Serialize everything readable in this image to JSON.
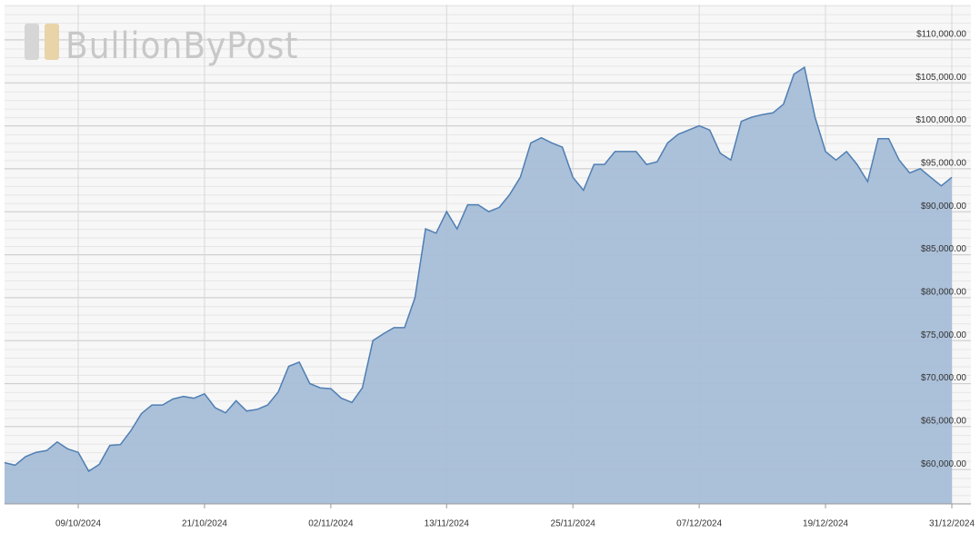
{
  "chart_data": {
    "type": "area",
    "watermark": "BullionByPost",
    "x": [
      "02/10/2024",
      "03/10/2024",
      "04/10/2024",
      "05/10/2024",
      "06/10/2024",
      "07/10/2024",
      "08/10/2024",
      "09/10/2024",
      "10/10/2024",
      "11/10/2024",
      "12/10/2024",
      "13/10/2024",
      "14/10/2024",
      "15/10/2024",
      "16/10/2024",
      "17/10/2024",
      "18/10/2024",
      "19/10/2024",
      "20/10/2024",
      "21/10/2024",
      "22/10/2024",
      "23/10/2024",
      "24/10/2024",
      "25/10/2024",
      "26/10/2024",
      "27/10/2024",
      "28/10/2024",
      "29/10/2024",
      "30/10/2024",
      "31/10/2024",
      "01/11/2024",
      "02/11/2024",
      "03/11/2024",
      "04/11/2024",
      "05/11/2024",
      "06/11/2024",
      "07/11/2024",
      "08/11/2024",
      "09/11/2024",
      "10/11/2024",
      "11/11/2024",
      "12/11/2024",
      "13/11/2024",
      "14/11/2024",
      "15/11/2024",
      "16/11/2024",
      "17/11/2024",
      "18/11/2024",
      "19/11/2024",
      "20/11/2024",
      "21/11/2024",
      "22/11/2024",
      "23/11/2024",
      "24/11/2024",
      "25/11/2024",
      "26/11/2024",
      "27/11/2024",
      "28/11/2024",
      "29/11/2024",
      "30/11/2024",
      "01/12/2024",
      "02/12/2024",
      "03/12/2024",
      "04/12/2024",
      "05/12/2024",
      "06/12/2024",
      "07/12/2024",
      "08/12/2024",
      "09/12/2024",
      "10/12/2024",
      "11/12/2024",
      "12/12/2024",
      "13/12/2024",
      "14/12/2024",
      "15/12/2024",
      "16/12/2024",
      "17/12/2024",
      "18/12/2024",
      "19/12/2024",
      "20/12/2024",
      "21/12/2024",
      "22/12/2024",
      "23/12/2024",
      "24/12/2024",
      "25/12/2024",
      "26/12/2024",
      "27/12/2024",
      "28/12/2024",
      "29/12/2024",
      "30/12/2024",
      "31/12/2024"
    ],
    "values": [
      60800,
      60500,
      61500,
      62000,
      62200,
      63200,
      62400,
      62000,
      59800,
      60600,
      62800,
      62900,
      64500,
      66500,
      67500,
      67500,
      68200,
      68500,
      68300,
      68800,
      67200,
      66600,
      68000,
      66800,
      67000,
      67500,
      69000,
      72000,
      72500,
      70000,
      69500,
      69400,
      68300,
      67800,
      69500,
      75000,
      75800,
      76500,
      76500,
      80000,
      88000,
      87500,
      90000,
      88000,
      90800,
      90800,
      90000,
      90500,
      92000,
      94000,
      98000,
      98600,
      98000,
      97500,
      94000,
      92500,
      95500,
      95500,
      97000,
      97000,
      97000,
      95500,
      95800,
      98000,
      99000,
      99500,
      100000,
      99500,
      96800,
      96000,
      100500,
      101000,
      101300,
      101500,
      102500,
      106000,
      106800,
      101000,
      97000,
      96000,
      97000,
      95500,
      93500,
      98500,
      98500,
      96000,
      94500,
      95000,
      94000,
      93000,
      94000
    ],
    "color": "#4f7fb3",
    "fill": "#a6bdd7",
    "xlim": [
      "02/10/2024",
      "31/12/2024"
    ],
    "xticks": [
      "09/10/2024",
      "21/10/2024",
      "02/11/2024",
      "13/11/2024",
      "25/11/2024",
      "07/12/2024",
      "19/12/2024",
      "31/12/2024"
    ],
    "ylim": [
      56000,
      114100
    ],
    "yticks": [
      {
        "value": 60000,
        "label": "$60,000.00"
      },
      {
        "value": 65000,
        "label": "$65,000.00"
      },
      {
        "value": 70000,
        "label": "$70,000.00"
      },
      {
        "value": 75000,
        "label": "$75,000.00"
      },
      {
        "value": 80000,
        "label": "$80,000.00"
      },
      {
        "value": 85000,
        "label": "$85,000.00"
      },
      {
        "value": 90000,
        "label": "$90,000.00"
      },
      {
        "value": 95000,
        "label": "$95,000.00"
      },
      {
        "value": 100000,
        "label": "$100,000.00"
      },
      {
        "value": 105000,
        "label": "$105,000.00"
      },
      {
        "value": 110000,
        "label": "$110,000.00"
      }
    ],
    "grid": true
  }
}
